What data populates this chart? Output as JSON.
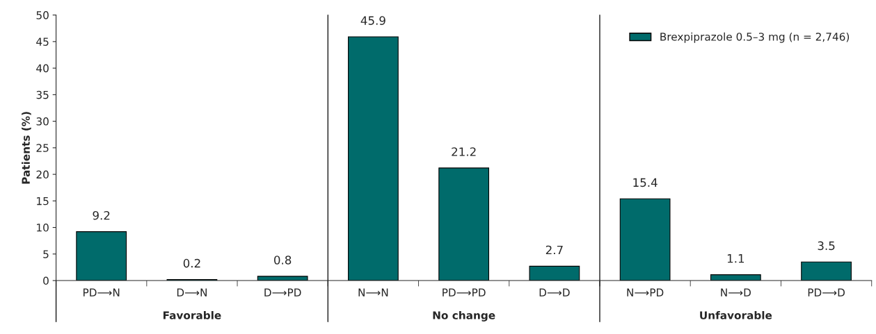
{
  "chart_data": {
    "type": "bar",
    "ylabel": "Patients (%)",
    "categories": [
      "PD⟶N",
      "D⟶N",
      "D⟶PD",
      "N⟶N",
      "PD⟶PD",
      "D⟶D",
      "N⟶PD",
      "N⟶D",
      "PD⟶D"
    ],
    "series": [
      {
        "name": "Brexpiprazole 0.5–3 mg (n = 2,746)",
        "color": "#006b6b",
        "values": [
          9.2,
          0.2,
          0.8,
          45.9,
          21.2,
          2.7,
          15.4,
          1.1,
          3.5
        ]
      }
    ],
    "ylim": [
      0,
      50
    ],
    "yticks": [
      0,
      5,
      10,
      15,
      20,
      25,
      30,
      35,
      40,
      45,
      50
    ],
    "data_labels": true,
    "legend": "top right",
    "grid": false,
    "annotations": [
      "Favorable",
      "No change",
      "Unfavorable"
    ]
  }
}
